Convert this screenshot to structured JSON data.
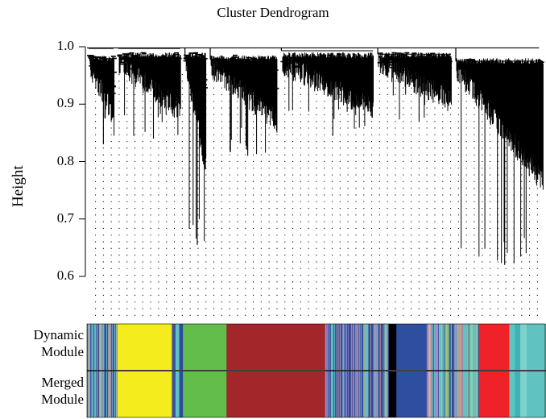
{
  "chart_data": {
    "type": "dendrogram",
    "title": "Cluster Dendrogram",
    "ylabel": "Height",
    "xlabel": "",
    "ylim": [
      0.52,
      1.0
    ],
    "yticks": [
      "1.0",
      "0.9",
      "0.8",
      "0.7",
      "0.6"
    ],
    "grid": false,
    "color_rows": [
      {
        "label_line1": "Dynamic",
        "label_line2": "Module",
        "name": "dynamic"
      },
      {
        "label_line1": "Merged",
        "label_line2": "Module",
        "name": "merged"
      }
    ],
    "clusters": [
      {
        "start": 0.0,
        "end": 0.065,
        "join": 0.997,
        "min": 0.83,
        "branch": 0.985
      },
      {
        "start": 0.065,
        "end": 0.21,
        "join": 0.997,
        "min": 0.84,
        "branch": 0.99
      },
      {
        "start": 0.21,
        "end": 0.265,
        "join": 0.978,
        "min": 0.655,
        "branch": 0.99
      },
      {
        "start": 0.265,
        "end": 0.42,
        "join": 0.978,
        "min": 0.81,
        "branch": 0.985
      },
      {
        "start": 0.42,
        "end": 0.63,
        "join": 0.993,
        "min": 0.845,
        "branch": 0.99
      },
      {
        "start": 0.63,
        "end": 0.8,
        "join": 0.987,
        "min": 0.87,
        "branch": 0.99
      },
      {
        "start": 0.8,
        "end": 1.0,
        "join": 0.975,
        "min": 0.62,
        "branch": 0.98
      }
    ],
    "module_colors": [
      {
        "start": 0.0,
        "end": 0.007,
        "color": "#a8c9a0"
      },
      {
        "start": 0.007,
        "end": 0.013,
        "color": "#7a7ab8"
      },
      {
        "start": 0.013,
        "end": 0.019,
        "color": "#5fc3c1"
      },
      {
        "start": 0.019,
        "end": 0.025,
        "color": "#3b4fa3"
      },
      {
        "start": 0.025,
        "end": 0.031,
        "color": "#c49a8a"
      },
      {
        "start": 0.031,
        "end": 0.038,
        "color": "#6f8fb8"
      },
      {
        "start": 0.038,
        "end": 0.047,
        "color": "#2f4fa0"
      },
      {
        "start": 0.047,
        "end": 0.056,
        "color": "#8aa0c8"
      },
      {
        "start": 0.056,
        "end": 0.066,
        "color": "#4a5fa8"
      },
      {
        "start": 0.066,
        "end": 0.185,
        "color": "#f4ec1c"
      },
      {
        "start": 0.185,
        "end": 0.193,
        "color": "#3a52a0"
      },
      {
        "start": 0.193,
        "end": 0.201,
        "color": "#5fc3c1"
      },
      {
        "start": 0.201,
        "end": 0.209,
        "color": "#2e4a9c"
      },
      {
        "start": 0.209,
        "end": 0.304,
        "color": "#62bd4a"
      },
      {
        "start": 0.304,
        "end": 0.519,
        "color": "#a3262b"
      },
      {
        "start": 0.519,
        "end": 0.53,
        "color": "#7a7ab8"
      },
      {
        "start": 0.53,
        "end": 0.541,
        "color": "#5fc3c1"
      },
      {
        "start": 0.541,
        "end": 0.555,
        "color": "#3b4fa3"
      },
      {
        "start": 0.555,
        "end": 0.566,
        "color": "#6a84bf"
      },
      {
        "start": 0.566,
        "end": 0.58,
        "color": "#2f4a9e"
      },
      {
        "start": 0.58,
        "end": 0.59,
        "color": "#8f7fbf"
      },
      {
        "start": 0.59,
        "end": 0.602,
        "color": "#3a55a5"
      },
      {
        "start": 0.602,
        "end": 0.613,
        "color": "#5fc3c1"
      },
      {
        "start": 0.613,
        "end": 0.624,
        "color": "#2c4598"
      },
      {
        "start": 0.624,
        "end": 0.636,
        "color": "#7d8fc8"
      },
      {
        "start": 0.636,
        "end": 0.648,
        "color": "#3a52a2"
      },
      {
        "start": 0.648,
        "end": 0.657,
        "color": "#5fc3c1"
      },
      {
        "start": 0.657,
        "end": 0.674,
        "color": "#000000"
      },
      {
        "start": 0.674,
        "end": 0.74,
        "color": "#2e4fa0"
      },
      {
        "start": 0.74,
        "end": 0.749,
        "color": "#f2b6c6"
      },
      {
        "start": 0.749,
        "end": 0.758,
        "color": "#5fc3c1"
      },
      {
        "start": 0.758,
        "end": 0.769,
        "color": "#b6a0d8"
      },
      {
        "start": 0.769,
        "end": 0.779,
        "color": "#5fc3c1"
      },
      {
        "start": 0.779,
        "end": 0.789,
        "color": "#9cc43c"
      },
      {
        "start": 0.789,
        "end": 0.8,
        "color": "#3b4fa3"
      },
      {
        "start": 0.8,
        "end": 0.809,
        "color": "#5fc3c1"
      },
      {
        "start": 0.809,
        "end": 0.819,
        "color": "#c49a8a"
      },
      {
        "start": 0.819,
        "end": 0.829,
        "color": "#5fc3c1"
      },
      {
        "start": 0.829,
        "end": 0.839,
        "color": "#8fd0a0"
      },
      {
        "start": 0.839,
        "end": 0.853,
        "color": "#5fc3c1"
      },
      {
        "start": 0.853,
        "end": 0.92,
        "color": "#ee2228"
      },
      {
        "start": 0.92,
        "end": 0.932,
        "color": "#5fc3c1"
      },
      {
        "start": 0.932,
        "end": 0.944,
        "color": "#3fb2b8"
      },
      {
        "start": 0.944,
        "end": 0.958,
        "color": "#7ed2cc"
      },
      {
        "start": 0.958,
        "end": 0.97,
        "color": "#5fc3c1"
      },
      {
        "start": 0.97,
        "end": 1.0,
        "color": "#5fc3c1"
      }
    ]
  }
}
